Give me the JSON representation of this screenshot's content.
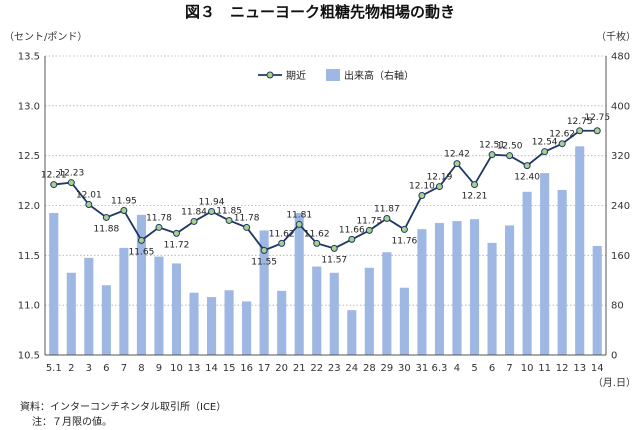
{
  "chart_data": {
    "type": "bar+line",
    "title": "図３　ニューヨーク粗糖先物相場の動き",
    "left_unit": "（セント/ポンド）",
    "right_unit": "（千枚）",
    "x_unit": "（月.日）",
    "categories": [
      "5.1",
      "2",
      "3",
      "6",
      "7",
      "8",
      "9",
      "10",
      "13",
      "14",
      "15",
      "16",
      "17",
      "20",
      "21",
      "22",
      "23",
      "24",
      "28",
      "29",
      "30",
      "31",
      "6.3",
      "4",
      "5",
      "6",
      "7",
      "10",
      "11",
      "12",
      "13",
      "14"
    ],
    "left_axis": {
      "min": 10.5,
      "max": 13.5,
      "ticks": [
        "10.5",
        "11.0",
        "11.5",
        "12.0",
        "12.5",
        "13.0",
        "13.5"
      ]
    },
    "right_axis": {
      "min": 0,
      "max": 480,
      "ticks": [
        "0",
        "80",
        "160",
        "240",
        "320",
        "400",
        "480"
      ]
    },
    "series": [
      {
        "name": "期近",
        "type": "line",
        "axis": "left",
        "color": "#1f3864",
        "marker_color": "#a9d18e",
        "values": [
          12.21,
          12.23,
          12.01,
          11.88,
          11.95,
          11.65,
          11.78,
          11.72,
          11.84,
          11.94,
          11.85,
          11.78,
          11.55,
          11.62,
          11.81,
          11.62,
          11.57,
          11.66,
          11.75,
          11.87,
          11.76,
          12.1,
          12.19,
          12.42,
          12.21,
          12.51,
          12.5,
          12.4,
          12.54,
          12.62,
          12.75,
          12.75
        ],
        "labels": [
          "12.21",
          "12.23",
          "12.01",
          "11.88",
          "11.95",
          "11.65",
          "11.78",
          "11.72",
          "11.84",
          "11.94",
          "11.85",
          "11.78",
          "11.55",
          "11.62",
          "11.81",
          "11.62",
          "11.57",
          "11.66",
          "11.75",
          "11.87",
          "11.76",
          "12.10",
          "12.19",
          "12.42",
          "12.21",
          "12.51",
          "12.50",
          "12.40",
          "12.54",
          "12.62",
          "12.75",
          "12.75"
        ]
      },
      {
        "name": "出来高（右軸）",
        "type": "bar",
        "axis": "right",
        "color": "#9fb8e3",
        "values": [
          228,
          132,
          156,
          112,
          172,
          225,
          158,
          147,
          100,
          93,
          104,
          86,
          200,
          103,
          228,
          142,
          132,
          72,
          140,
          165,
          108,
          202,
          212,
          215,
          218,
          180,
          208,
          262,
          292,
          265,
          335,
          175
        ]
      }
    ],
    "legend_position": "top-center",
    "grid": "horizontal-dotted",
    "notes": [
      "資料：インターコンチネンタル取引所（ICE）",
      "注：７月限の値。"
    ]
  }
}
